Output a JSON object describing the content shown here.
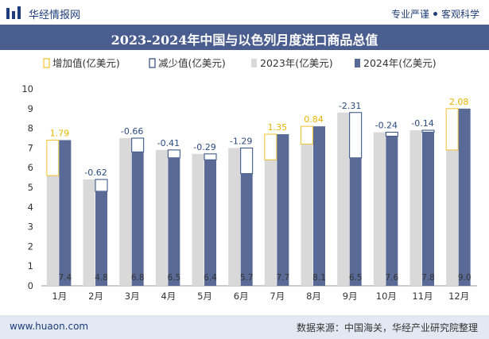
{
  "header": {
    "brand": "华经情报网",
    "tagline_left": "专业严谨",
    "tagline_right": "客观科学"
  },
  "title": "2023-2024年中国与以色列月度进口商品总值",
  "footer": {
    "website": "www.huaon.com",
    "source": "数据来源：中国海关，华经产业研究院整理"
  },
  "colors": {
    "increase": "#f2c12e",
    "decrease": "#2a4a7f",
    "y2023": "#d9d9d9",
    "y2024": "#5a6a96",
    "title_bg": "#4a5d8f"
  },
  "chart_data": {
    "type": "bar",
    "categories": [
      "1月",
      "2月",
      "3月",
      "4月",
      "5月",
      "6月",
      "7月",
      "8月",
      "9月",
      "10月",
      "11月",
      "12月"
    ],
    "series": [
      {
        "name": "2023年(亿美元)",
        "values": [
          5.6,
          5.4,
          7.5,
          6.9,
          6.7,
          7.0,
          6.4,
          7.2,
          8.8,
          7.8,
          7.9,
          6.9
        ]
      },
      {
        "name": "2024年(亿美元)",
        "values": [
          7.4,
          4.8,
          6.8,
          6.5,
          6.4,
          5.7,
          7.7,
          8.1,
          6.5,
          7.6,
          7.8,
          9.0
        ]
      }
    ],
    "value_labels_2024": [
      "7.4",
      "4.8",
      "6.8",
      "6.5",
      "6.4",
      "5.7",
      "7.7",
      "8.1",
      "6.5",
      "7.6",
      "7.8",
      "9.0"
    ],
    "change_labels": [
      "1.79",
      "-0.62",
      "-0.66",
      "-0.41",
      "-0.29",
      "-1.29",
      "1.35",
      "0.84",
      "-2.31",
      "-0.24",
      "-0.14",
      "2.08"
    ],
    "changes": [
      1.79,
      -0.62,
      -0.66,
      -0.41,
      -0.29,
      -1.29,
      1.35,
      0.84,
      -2.31,
      -0.24,
      -0.14,
      2.08
    ],
    "legend": [
      "增加值(亿美元)",
      "减少值(亿美元)",
      "2023年(亿美元)",
      "2024年(亿美元)"
    ],
    "legend_position": "top",
    "ylim": [
      0,
      10
    ],
    "yticks": [
      "0",
      "1",
      "2",
      "3",
      "4",
      "5",
      "6",
      "7",
      "8",
      "9",
      "10"
    ],
    "grid": false
  }
}
